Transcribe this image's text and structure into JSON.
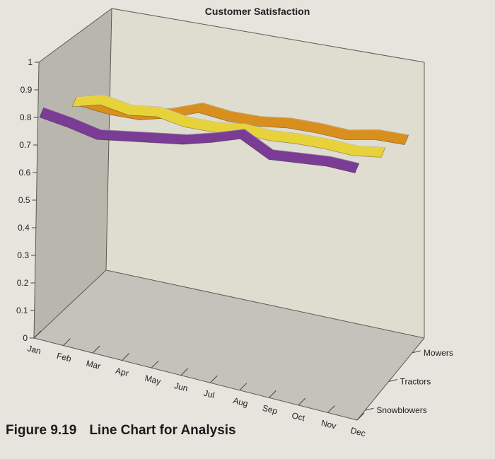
{
  "chart_data": {
    "type": "line",
    "title": "Customer Satisfaction",
    "categories": [
      "Jan",
      "Feb",
      "Mar",
      "Apr",
      "May",
      "Jun",
      "Jul",
      "Aug",
      "Sep",
      "Oct",
      "Nov",
      "Dec"
    ],
    "y_ticks": [
      "0",
      "0.1",
      "0.2",
      "0.3",
      "0.4",
      "0.5",
      "0.6",
      "0.7",
      "0.8",
      "0.9",
      "1"
    ],
    "ylim": [
      0,
      1
    ],
    "series": [
      {
        "name": "Mowers",
        "color": "#d98f1e",
        "values": [
          0.84,
          0.8,
          0.78,
          0.8,
          0.84,
          0.8,
          0.78,
          0.78,
          0.76,
          0.73,
          0.74,
          0.72
        ]
      },
      {
        "name": "Tractors",
        "color": "#e8d23a",
        "values": [
          0.87,
          0.89,
          0.84,
          0.84,
          0.79,
          0.77,
          0.77,
          0.74,
          0.73,
          0.71,
          0.68,
          0.68
        ]
      },
      {
        "name": "Snowblowers",
        "color": "#7a3c94",
        "values": [
          0.85,
          0.8,
          0.74,
          0.74,
          0.74,
          0.74,
          0.76,
          0.79,
          0.68,
          0.67,
          0.66,
          0.63
        ]
      }
    ],
    "grid": false,
    "style": "3d-ribbon"
  },
  "caption": {
    "number": "Figure 9.19",
    "text": "Line Chart for Analysis"
  }
}
